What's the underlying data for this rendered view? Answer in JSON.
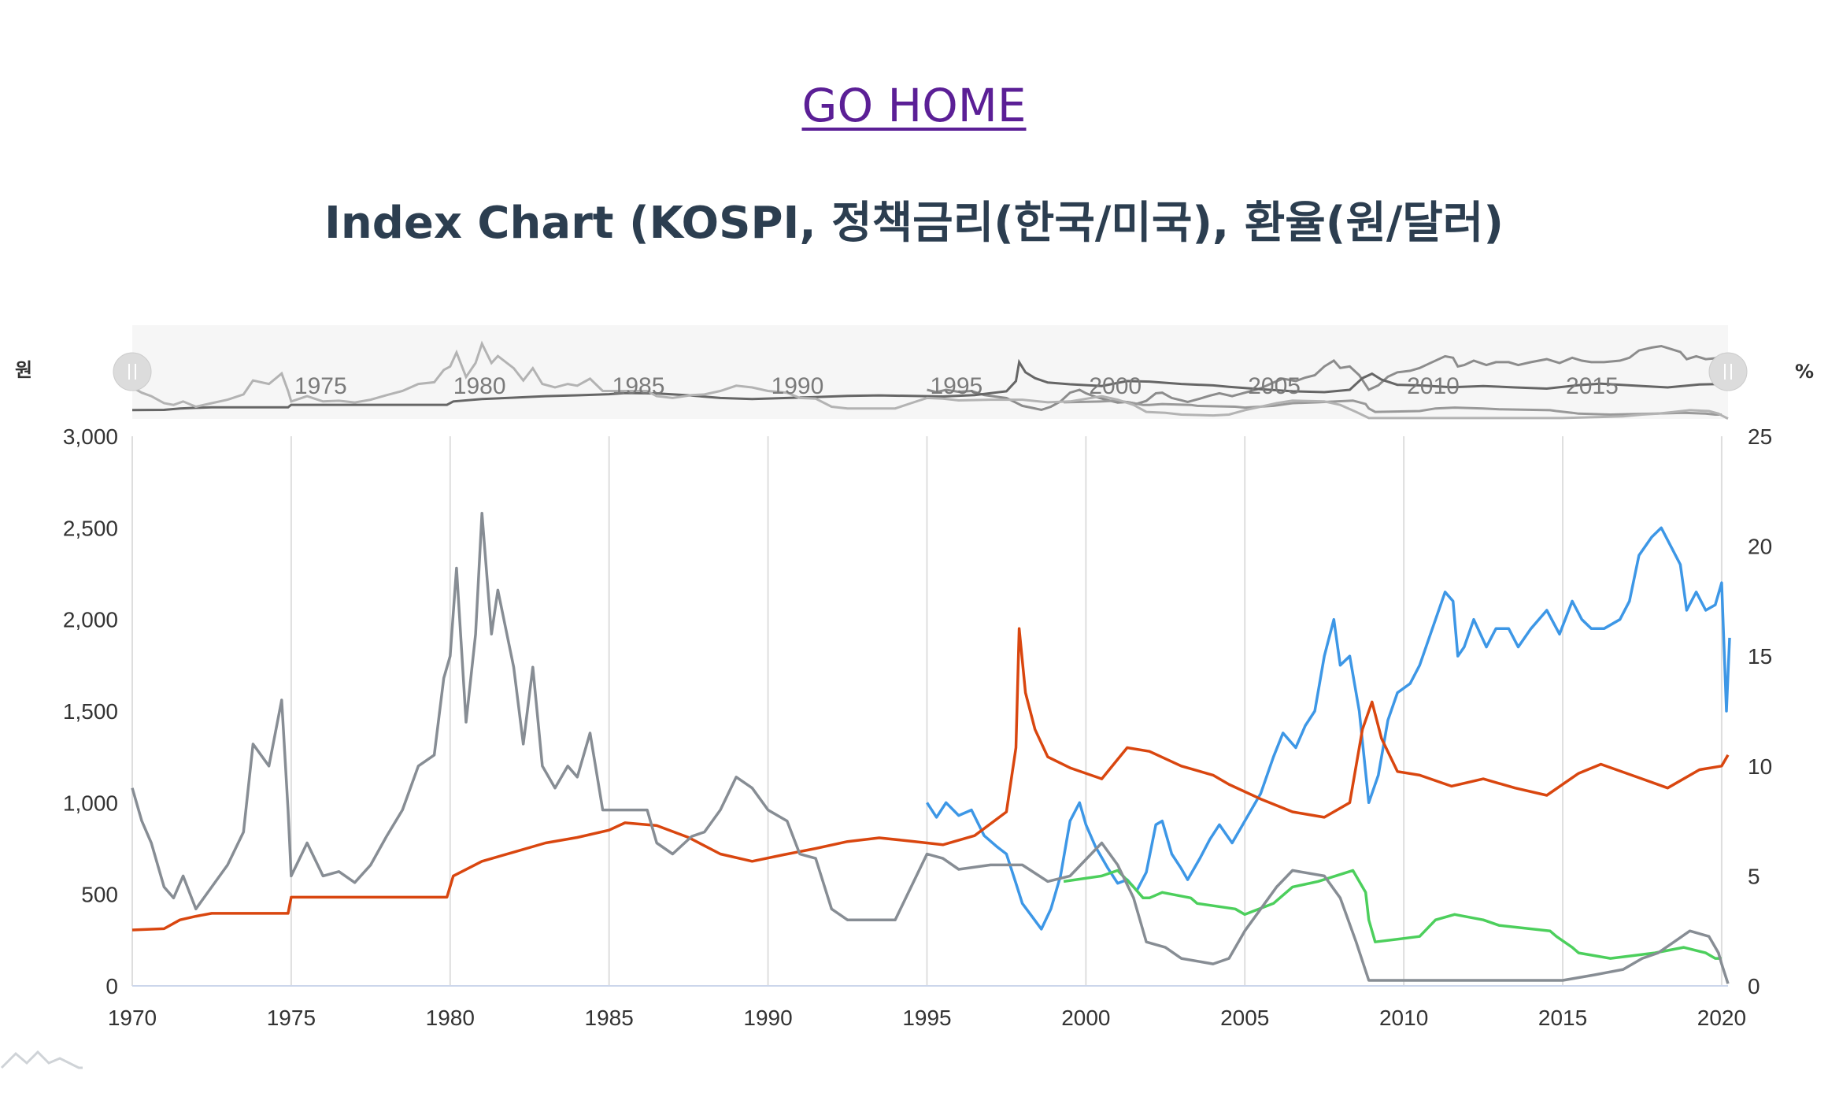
{
  "header": {
    "home_link": "GO HOME",
    "title": "Index Chart (KOSPI, 정책금리(한국/미국), 환율(원/달러)"
  },
  "chart_data": {
    "type": "line",
    "title": "Index Chart (KOSPI, 정책금리(한국/미국), 환율(원/달러)",
    "left_axis_unit": "원",
    "right_axis_unit": "%",
    "ylim_left": [
      0,
      3000
    ],
    "ylim_right": [
      0,
      25
    ],
    "xlim": [
      1970,
      2020.2
    ],
    "x_ticks": [
      "1970",
      "1975",
      "1980",
      "1985",
      "1990",
      "1995",
      "2000",
      "2005",
      "2010",
      "2015",
      "2020"
    ],
    "y_left_ticks": [
      "0",
      "500",
      "1,000",
      "1,500",
      "2,000",
      "2,500",
      "3,000"
    ],
    "y_right_ticks": [
      "0",
      "5",
      "10",
      "15",
      "20",
      "25"
    ],
    "grid": "vertical",
    "legend": "none",
    "navigator": {
      "ticks": [
        "1975",
        "1980",
        "1985",
        "1990",
        "1995",
        "2000",
        "2005",
        "2010",
        "2015"
      ]
    },
    "series": [
      {
        "axis": "left",
        "color": "#3d97e6",
        "points": [
          [
            1995.0,
            1000
          ],
          [
            1995.3,
            920
          ],
          [
            1995.6,
            1000
          ],
          [
            1996.0,
            930
          ],
          [
            1996.4,
            960
          ],
          [
            1996.8,
            820
          ],
          [
            1997.2,
            760
          ],
          [
            1997.5,
            720
          ],
          [
            1997.8,
            560
          ],
          [
            1998.0,
            450
          ],
          [
            1998.3,
            380
          ],
          [
            1998.6,
            310
          ],
          [
            1998.9,
            420
          ],
          [
            1999.2,
            600
          ],
          [
            1999.5,
            900
          ],
          [
            1999.8,
            1000
          ],
          [
            2000.0,
            880
          ],
          [
            2000.3,
            760
          ],
          [
            2000.7,
            640
          ],
          [
            2001.0,
            560
          ],
          [
            2001.3,
            580
          ],
          [
            2001.6,
            520
          ],
          [
            2001.9,
            620
          ],
          [
            2002.2,
            880
          ],
          [
            2002.4,
            900
          ],
          [
            2002.7,
            720
          ],
          [
            2003.0,
            640
          ],
          [
            2003.2,
            580
          ],
          [
            2003.6,
            700
          ],
          [
            2003.9,
            800
          ],
          [
            2004.2,
            880
          ],
          [
            2004.6,
            780
          ],
          [
            2004.9,
            870
          ],
          [
            2005.2,
            960
          ],
          [
            2005.5,
            1050
          ],
          [
            2005.9,
            1250
          ],
          [
            2006.2,
            1380
          ],
          [
            2006.6,
            1300
          ],
          [
            2006.9,
            1420
          ],
          [
            2007.2,
            1500
          ],
          [
            2007.5,
            1800
          ],
          [
            2007.8,
            2000
          ],
          [
            2008.0,
            1750
          ],
          [
            2008.3,
            1800
          ],
          [
            2008.6,
            1500
          ],
          [
            2008.9,
            1000
          ],
          [
            2009.2,
            1150
          ],
          [
            2009.5,
            1450
          ],
          [
            2009.8,
            1600
          ],
          [
            2010.2,
            1650
          ],
          [
            2010.5,
            1750
          ],
          [
            2010.8,
            1900
          ],
          [
            2011.3,
            2150
          ],
          [
            2011.55,
            2100
          ],
          [
            2011.7,
            1800
          ],
          [
            2011.9,
            1850
          ],
          [
            2012.2,
            2000
          ],
          [
            2012.6,
            1850
          ],
          [
            2012.9,
            1950
          ],
          [
            2013.3,
            1950
          ],
          [
            2013.6,
            1850
          ],
          [
            2014.0,
            1950
          ],
          [
            2014.5,
            2050
          ],
          [
            2014.9,
            1920
          ],
          [
            2015.3,
            2100
          ],
          [
            2015.6,
            2000
          ],
          [
            2015.9,
            1950
          ],
          [
            2016.3,
            1950
          ],
          [
            2016.8,
            2000
          ],
          [
            2017.1,
            2100
          ],
          [
            2017.4,
            2350
          ],
          [
            2017.8,
            2450
          ],
          [
            2018.1,
            2500
          ],
          [
            2018.4,
            2400
          ],
          [
            2018.7,
            2300
          ],
          [
            2018.9,
            2050
          ],
          [
            2019.2,
            2150
          ],
          [
            2019.5,
            2050
          ],
          [
            2019.8,
            2080
          ],
          [
            2020.0,
            2200
          ],
          [
            2020.15,
            1500
          ],
          [
            2020.25,
            1900
          ]
        ]
      },
      {
        "axis": "left",
        "color": "#d9460f",
        "points": [
          [
            1970.0,
            305
          ],
          [
            1971.0,
            312
          ],
          [
            1971.5,
            360
          ],
          [
            1972.0,
            380
          ],
          [
            1972.5,
            396
          ],
          [
            1974.9,
            396
          ],
          [
            1975.0,
            484
          ],
          [
            1979.9,
            484
          ],
          [
            1980.1,
            600
          ],
          [
            1981.0,
            680
          ],
          [
            1982.0,
            730
          ],
          [
            1983.0,
            780
          ],
          [
            1984.0,
            810
          ],
          [
            1985.0,
            850
          ],
          [
            1985.5,
            890
          ],
          [
            1986.5,
            875
          ],
          [
            1987.5,
            810
          ],
          [
            1988.5,
            720
          ],
          [
            1989.5,
            680
          ],
          [
            1990.5,
            716
          ],
          [
            1991.5,
            750
          ],
          [
            1992.5,
            788
          ],
          [
            1993.5,
            808
          ],
          [
            1994.5,
            790
          ],
          [
            1995.5,
            770
          ],
          [
            1996.5,
            820
          ],
          [
            1997.5,
            950
          ],
          [
            1997.8,
            1300
          ],
          [
            1997.9,
            1950
          ],
          [
            1998.1,
            1600
          ],
          [
            1998.4,
            1400
          ],
          [
            1998.8,
            1250
          ],
          [
            1999.5,
            1190
          ],
          [
            2000.5,
            1130
          ],
          [
            2001.3,
            1300
          ],
          [
            2002.0,
            1280
          ],
          [
            2003.0,
            1200
          ],
          [
            2004.0,
            1150
          ],
          [
            2004.5,
            1100
          ],
          [
            2005.5,
            1020
          ],
          [
            2006.5,
            950
          ],
          [
            2007.5,
            920
          ],
          [
            2008.3,
            1000
          ],
          [
            2008.7,
            1400
          ],
          [
            2009.0,
            1550
          ],
          [
            2009.3,
            1350
          ],
          [
            2009.8,
            1170
          ],
          [
            2010.5,
            1150
          ],
          [
            2011.5,
            1090
          ],
          [
            2012.5,
            1130
          ],
          [
            2013.5,
            1080
          ],
          [
            2014.5,
            1040
          ],
          [
            2015.5,
            1160
          ],
          [
            2016.2,
            1210
          ],
          [
            2017.5,
            1130
          ],
          [
            2018.3,
            1080
          ],
          [
            2019.3,
            1180
          ],
          [
            2020.0,
            1200
          ],
          [
            2020.2,
            1260
          ]
        ]
      },
      {
        "axis": "right",
        "color": "#4ccf5c",
        "points": [
          [
            1999.3,
            4.75
          ],
          [
            2000.5,
            5.0
          ],
          [
            2001.0,
            5.25
          ],
          [
            2001.5,
            4.5
          ],
          [
            2001.8,
            4.0
          ],
          [
            2002.0,
            4.0
          ],
          [
            2002.4,
            4.25
          ],
          [
            2003.3,
            4.0
          ],
          [
            2003.5,
            3.75
          ],
          [
            2004.7,
            3.5
          ],
          [
            2005.0,
            3.25
          ],
          [
            2005.9,
            3.75
          ],
          [
            2006.5,
            4.5
          ],
          [
            2007.3,
            4.75
          ],
          [
            2008.4,
            5.25
          ],
          [
            2008.8,
            4.25
          ],
          [
            2008.9,
            3.0
          ],
          [
            2009.1,
            2.0
          ],
          [
            2010.5,
            2.25
          ],
          [
            2011.0,
            3.0
          ],
          [
            2011.6,
            3.25
          ],
          [
            2012.5,
            3.0
          ],
          [
            2013.0,
            2.75
          ],
          [
            2014.6,
            2.5
          ],
          [
            2014.8,
            2.25
          ],
          [
            2015.3,
            1.75
          ],
          [
            2015.5,
            1.5
          ],
          [
            2016.5,
            1.25
          ],
          [
            2017.9,
            1.5
          ],
          [
            2018.8,
            1.75
          ],
          [
            2019.5,
            1.5
          ],
          [
            2019.8,
            1.25
          ],
          [
            2020.0,
            1.25
          ]
        ]
      },
      {
        "axis": "right",
        "color": "#878d94",
        "points": [
          [
            1970.0,
            9.0
          ],
          [
            1970.3,
            7.5
          ],
          [
            1970.6,
            6.5
          ],
          [
            1971.0,
            4.5
          ],
          [
            1971.3,
            4.0
          ],
          [
            1971.6,
            5.0
          ],
          [
            1972.0,
            3.5
          ],
          [
            1972.5,
            4.5
          ],
          [
            1973.0,
            5.5
          ],
          [
            1973.5,
            7.0
          ],
          [
            1973.8,
            11.0
          ],
          [
            1974.3,
            10.0
          ],
          [
            1974.7,
            13.0
          ],
          [
            1974.9,
            8.0
          ],
          [
            1975.0,
            5.0
          ],
          [
            1975.5,
            6.5
          ],
          [
            1976.0,
            5.0
          ],
          [
            1976.5,
            5.2
          ],
          [
            1977.0,
            4.7
          ],
          [
            1977.5,
            5.5
          ],
          [
            1978.0,
            6.8
          ],
          [
            1978.5,
            8.0
          ],
          [
            1979.0,
            10.0
          ],
          [
            1979.5,
            10.5
          ],
          [
            1979.8,
            14.0
          ],
          [
            1980.0,
            15.0
          ],
          [
            1980.2,
            19.0
          ],
          [
            1980.5,
            12.0
          ],
          [
            1980.8,
            16.0
          ],
          [
            1981.0,
            21.5
          ],
          [
            1981.3,
            16.0
          ],
          [
            1981.5,
            18.0
          ],
          [
            1982.0,
            14.5
          ],
          [
            1982.3,
            11.0
          ],
          [
            1982.6,
            14.5
          ],
          [
            1982.9,
            10.0
          ],
          [
            1983.3,
            9.0
          ],
          [
            1983.7,
            10.0
          ],
          [
            1984.0,
            9.5
          ],
          [
            1984.4,
            11.5
          ],
          [
            1984.8,
            8.0
          ],
          [
            1985.5,
            8.0
          ],
          [
            1986.2,
            8.0
          ],
          [
            1986.5,
            6.5
          ],
          [
            1987.0,
            6.0
          ],
          [
            1987.6,
            6.8
          ],
          [
            1988.0,
            7.0
          ],
          [
            1988.5,
            8.0
          ],
          [
            1989.0,
            9.5
          ],
          [
            1989.5,
            9.0
          ],
          [
            1990.0,
            8.0
          ],
          [
            1990.6,
            7.5
          ],
          [
            1991.0,
            6.0
          ],
          [
            1991.5,
            5.8
          ],
          [
            1992.0,
            3.5
          ],
          [
            1992.5,
            3.0
          ],
          [
            1993.0,
            3.0
          ],
          [
            1994.0,
            3.0
          ],
          [
            1994.5,
            4.5
          ],
          [
            1995.0,
            6.0
          ],
          [
            1995.5,
            5.8
          ],
          [
            1996.0,
            5.3
          ],
          [
            1997.0,
            5.5
          ],
          [
            1998.0,
            5.5
          ],
          [
            1998.8,
            4.75
          ],
          [
            1999.5,
            5.0
          ],
          [
            2000.5,
            6.5
          ],
          [
            2001.0,
            5.5
          ],
          [
            2001.5,
            4.0
          ],
          [
            2001.9,
            2.0
          ],
          [
            2002.5,
            1.75
          ],
          [
            2003.0,
            1.25
          ],
          [
            2004.0,
            1.0
          ],
          [
            2004.5,
            1.25
          ],
          [
            2005.0,
            2.5
          ],
          [
            2006.0,
            4.5
          ],
          [
            2006.5,
            5.25
          ],
          [
            2007.5,
            5.0
          ],
          [
            2008.0,
            4.0
          ],
          [
            2008.5,
            2.0
          ],
          [
            2008.9,
            0.25
          ],
          [
            2011.0,
            0.25
          ],
          [
            2015.0,
            0.25
          ],
          [
            2016.0,
            0.5
          ],
          [
            2016.9,
            0.75
          ],
          [
            2017.5,
            1.25
          ],
          [
            2018.0,
            1.5
          ],
          [
            2018.5,
            2.0
          ],
          [
            2019.0,
            2.5
          ],
          [
            2019.6,
            2.25
          ],
          [
            2019.9,
            1.5
          ],
          [
            2020.0,
            1.0
          ],
          [
            2020.2,
            0.1
          ]
        ]
      }
    ]
  }
}
